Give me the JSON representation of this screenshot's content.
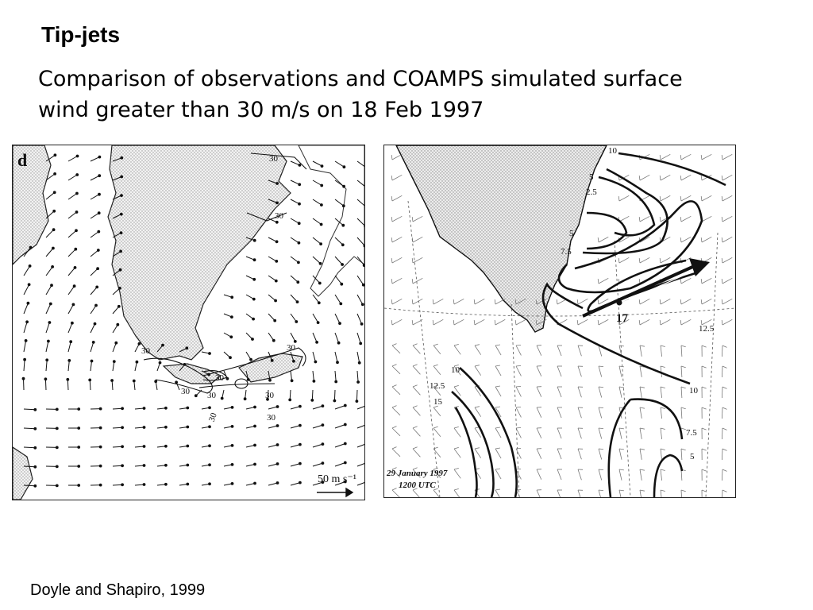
{
  "slide": {
    "title": "Tip-jets",
    "subtitle": "Comparison of observations and COAMPS simulated surface wind greater than 30 m/s on 18 Feb 1997",
    "citation": "Doyle and Shapiro, 1999"
  },
  "left_panel": {
    "panel_letter": "d",
    "contour_labels": [
      "30",
      "30",
      "30",
      "30",
      "30",
      "30",
      "30",
      "30",
      "30",
      "30"
    ],
    "scale_label": "50 m s⁻¹"
  },
  "right_panel": {
    "contour_labels": [
      "10",
      "5",
      "2.5",
      "5",
      "7.5",
      "17",
      "12.5",
      "10",
      "12.5",
      "15",
      "10",
      "7.5",
      "5"
    ],
    "date_label": "29 January 1997",
    "time_label": "1200 UTC"
  },
  "colors": {
    "land_fill": "#d8d8d8",
    "contour": "#111111",
    "text": "#000000"
  }
}
